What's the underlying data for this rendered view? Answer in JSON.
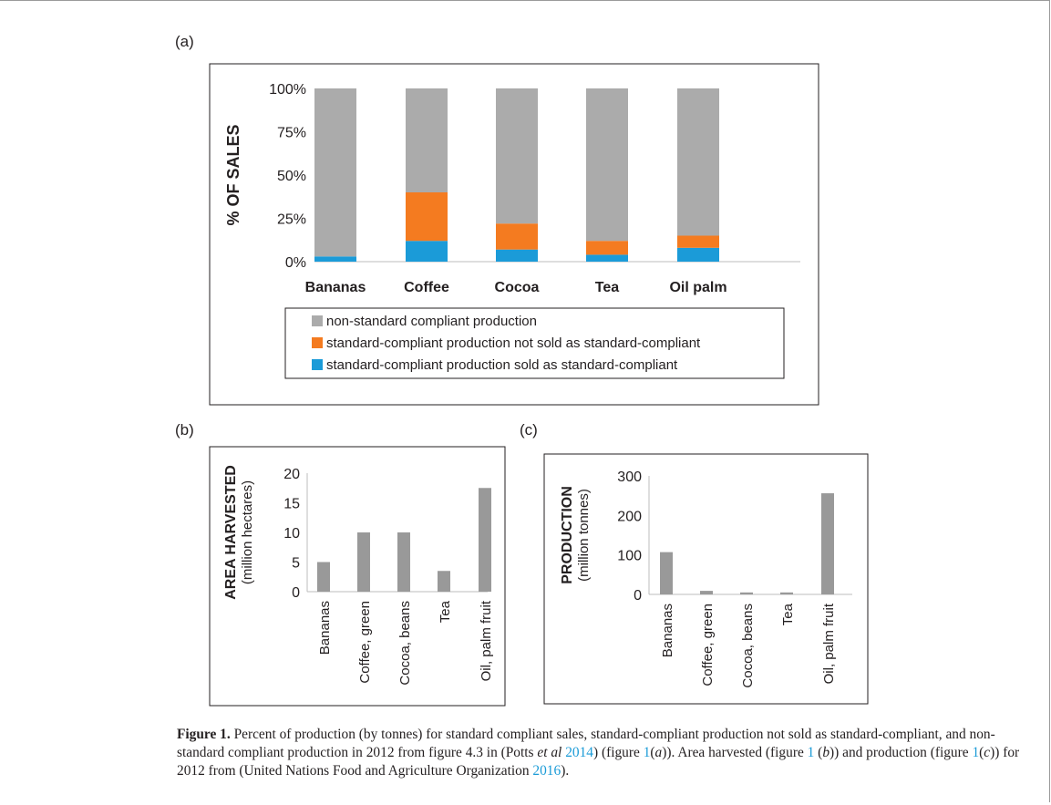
{
  "panel_labels": {
    "a": "(a)",
    "b": "(b)",
    "c": "(c)"
  },
  "colors": {
    "gray": "#ababab",
    "orange": "#f47b20",
    "blue": "#1b9bd8",
    "bar_small": "#999999",
    "link": "#1a9bd7"
  },
  "chart_data": [
    {
      "type": "bar",
      "stacked": true,
      "title": "",
      "ylabel": "% OF SALES",
      "xlabel": "",
      "ylim": [
        0,
        100
      ],
      "yticks": [
        "0%",
        "25%",
        "50%",
        "75%",
        "100%"
      ],
      "categories": [
        "Bananas",
        "Coffee",
        "Cocoa",
        "Tea",
        "Oil palm"
      ],
      "series": [
        {
          "name": "standard-compliant production sold as standard-compliant",
          "color": "#1b9bd8",
          "values": [
            3,
            12,
            7,
            4,
            8
          ]
        },
        {
          "name": "standard-compliant production not sold as standard-compliant",
          "color": "#f47b20",
          "values": [
            0,
            28,
            15,
            8,
            7
          ]
        },
        {
          "name": "non-standard compliant production",
          "color": "#ababab",
          "values": [
            97,
            60,
            78,
            88,
            85
          ]
        }
      ],
      "legend": [
        "non-standard compliant production",
        "standard-compliant production not sold as standard-compliant",
        "standard-compliant production sold as standard-compliant"
      ],
      "legend_position": "bottom"
    },
    {
      "type": "bar",
      "title": "",
      "ylabel": "AREA HARVESTED",
      "ylabel_sub": "(million hectares)",
      "ylim": [
        0,
        20
      ],
      "yticks": [
        "0",
        "5",
        "10",
        "15",
        "20"
      ],
      "categories": [
        "Bananas",
        "Coffee, green",
        "Cocoa, beans",
        "Tea",
        "Oil, palm fruit"
      ],
      "values": [
        5,
        10,
        10,
        3.5,
        17.5
      ]
    },
    {
      "type": "bar",
      "title": "",
      "ylabel": "PRODUCTION",
      "ylabel_sub": "(million tonnes)",
      "ylim": [
        0,
        300
      ],
      "yticks": [
        "0",
        "100",
        "200",
        "300"
      ],
      "categories": [
        "Bananas",
        "Coffee, green",
        "Cocoa, beans",
        "Tea",
        "Oil, palm fruit"
      ],
      "values": [
        107,
        9,
        5,
        5,
        256
      ]
    }
  ],
  "caption": {
    "figure_label": "Figure 1.",
    "part1": " Percent of production (by tonnes) for standard compliant sales, standard-compliant production not sold as standard-compliant, and non-standard compliant production in 2012 from figure 4.3 in (Potts ",
    "etal": "et al",
    "ref1": "2014",
    "part2": ") (figure ",
    "fig_ref_a": "1",
    "part3": "(",
    "a_letter": "a",
    "part4": ")). Area harvested (figure ",
    "fig_ref_b": "1",
    "part5": " (",
    "b_letter": "b",
    "part6": ")) and production (figure ",
    "fig_ref_c": "1",
    "part7": "(",
    "c_letter": "c",
    "part8": ")) for 2012 from (United Nations Food and Agriculture Organization ",
    "ref2": "2016",
    "part9": ")."
  }
}
